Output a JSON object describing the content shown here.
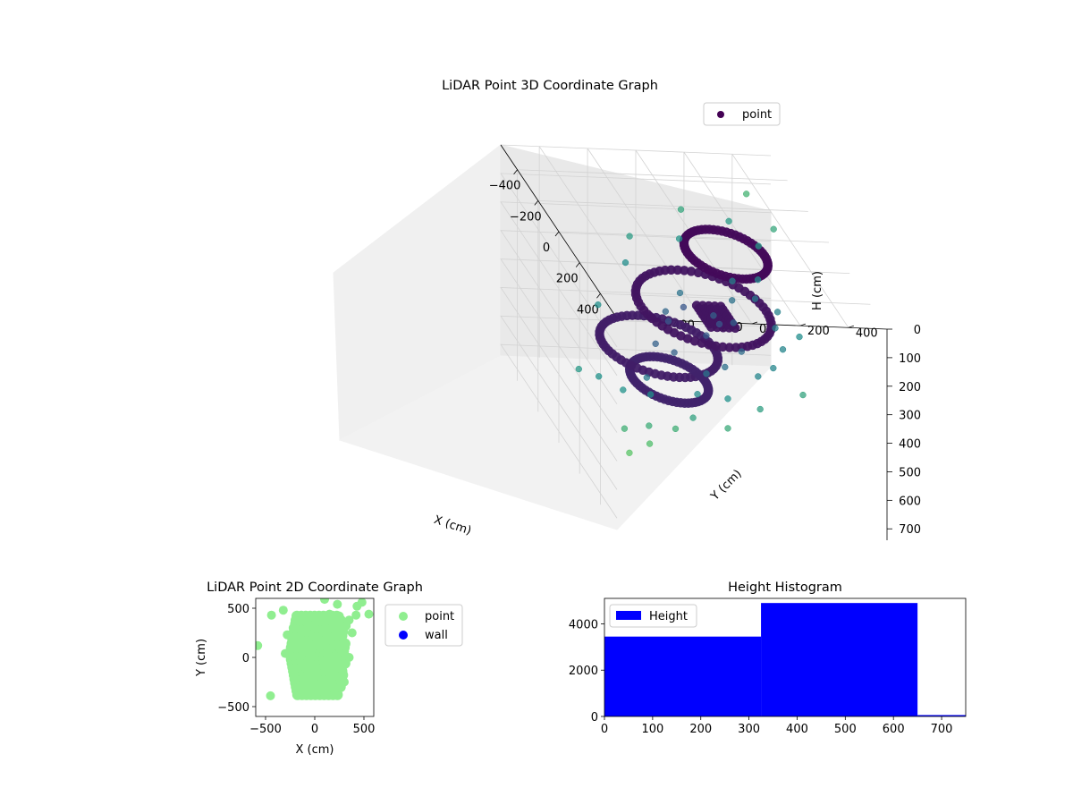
{
  "chart_data": [
    {
      "type": "scatter",
      "projection": "3d",
      "title": "LiDAR Point 3D Coordinate Graph",
      "xlabel": "X (cm)",
      "ylabel": "Y (cm)",
      "zlabel": "H (cm)",
      "x_ticks": [
        "−400",
        "−200",
        "0",
        "200",
        "400"
      ],
      "y_ticks": [
        "−400",
        "−200",
        "0",
        "200",
        "400"
      ],
      "z_ticks": [
        "0",
        "100",
        "200",
        "300",
        "400",
        "500",
        "600",
        "700"
      ],
      "xlim": [
        -560,
        560
      ],
      "ylim": [
        -560,
        560
      ],
      "zlim": [
        0,
        740
      ],
      "z_inverted": true,
      "grid": true,
      "colormap": "viridis",
      "legend": {
        "position": "top-right",
        "entries": [
          "point"
        ]
      },
      "series": [
        {
          "name": "point",
          "color": "#440154",
          "points": [
            [
              -470,
              420,
              90
            ],
            [
              -360,
              300,
              130
            ],
            [
              -520,
              170,
              180
            ],
            [
              -300,
              460,
              120
            ],
            [
              -260,
              380,
              160
            ],
            [
              -420,
              120,
              230
            ],
            [
              -480,
              -60,
              260
            ],
            [
              -380,
              -120,
              300
            ],
            [
              -210,
              250,
              260
            ],
            [
              -150,
              330,
              220
            ],
            [
              -120,
              210,
              280
            ],
            [
              -60,
              280,
              240
            ],
            [
              -250,
              50,
              330
            ],
            [
              -180,
              -40,
              360
            ],
            [
              -320,
              -260,
              420
            ],
            [
              -90,
              120,
              320
            ],
            [
              -20,
              -150,
              390
            ],
            [
              40,
              330,
              230
            ],
            [
              110,
              290,
              250
            ],
            [
              180,
              360,
              240
            ],
            [
              230,
              270,
              260
            ],
            [
              300,
              200,
              290
            ],
            [
              340,
              120,
              300
            ],
            [
              260,
              -60,
              340
            ],
            [
              360,
              -140,
              360
            ],
            [
              420,
              -40,
              340
            ],
            [
              480,
              -210,
              380
            ],
            [
              520,
              -300,
              400
            ],
            [
              450,
              -380,
              430
            ],
            [
              400,
              -460,
              470
            ],
            [
              550,
              -420,
              440
            ],
            [
              540,
              -500,
              480
            ],
            [
              280,
              -300,
              410
            ],
            [
              200,
              -380,
              440
            ],
            [
              150,
              -260,
              420
            ],
            [
              60,
              -420,
              470
            ],
            [
              -40,
              -460,
              500
            ],
            [
              500,
              60,
              330
            ],
            [
              560,
              -100,
              370
            ],
            [
              470,
              250,
              290
            ],
            [
              120,
              0,
              280
            ],
            [
              60,
              80,
              270
            ],
            [
              180,
              120,
              300
            ],
            [
              230,
              30,
              330
            ],
            [
              -100,
              0,
              300
            ],
            [
              -60,
              -80,
              330
            ],
            [
              10,
              160,
              290
            ],
            [
              90,
              -120,
              360
            ]
          ]
        }
      ]
    },
    {
      "type": "scatter",
      "title": "LiDAR Point 2D Coordinate Graph",
      "xlabel": "X (cm)",
      "ylabel": "Y (cm)",
      "x_ticks": [
        -500,
        0,
        500
      ],
      "y_ticks": [
        -500,
        0,
        500
      ],
      "xlim": [
        -600,
        600
      ],
      "ylim": [
        -600,
        600
      ],
      "legend": {
        "position": "outside-right",
        "entries": [
          "point",
          "wall"
        ]
      },
      "series": [
        {
          "name": "point",
          "color": "#90ee90",
          "points": [
            [
              -440,
              430
            ],
            [
              -320,
              480
            ],
            [
              -580,
              120
            ],
            [
              -450,
              -390
            ],
            [
              100,
              590
            ],
            [
              230,
              540
            ],
            [
              430,
              520
            ],
            [
              480,
              560
            ],
            [
              420,
              430
            ],
            [
              550,
              440
            ],
            [
              150,
              440
            ],
            [
              250,
              420
            ],
            [
              -200,
              380
            ],
            [
              350,
              380
            ],
            [
              -280,
              230
            ],
            [
              380,
              250
            ],
            [
              -300,
              40
            ],
            [
              350,
              0
            ],
            [
              -200,
              -220
            ],
            [
              300,
              -250
            ],
            [
              -100,
              -330
            ],
            [
              200,
              -330
            ],
            [
              0,
              -380
            ],
            [
              50,
              100
            ],
            [
              -100,
              150
            ],
            [
              150,
              200
            ],
            [
              -150,
              0
            ],
            [
              100,
              -100
            ],
            [
              0,
              300
            ],
            [
              -50,
              -150
            ],
            [
              250,
              100
            ],
            [
              200,
              -50
            ],
            [
              -220,
              300
            ],
            [
              320,
              320
            ],
            [
              80,
              -250
            ]
          ]
        },
        {
          "name": "wall",
          "color": "#0000ff",
          "points": []
        }
      ]
    },
    {
      "type": "bar",
      "title": "Height Histogram",
      "xlabel": "",
      "ylabel": "",
      "x_ticks": [
        0,
        100,
        200,
        300,
        400,
        500,
        600,
        700
      ],
      "y_ticks": [
        0,
        2000,
        4000
      ],
      "xlim": [
        0,
        750
      ],
      "ylim": [
        0,
        5100
      ],
      "legend": {
        "position": "top-left",
        "entries": [
          "Height"
        ]
      },
      "bins": [
        {
          "start": 0,
          "end": 325,
          "count": 3450
        },
        {
          "start": 325,
          "end": 650,
          "count": 4900
        },
        {
          "start": 650,
          "end": 750,
          "count": 60
        }
      ],
      "series": [
        {
          "name": "Height",
          "color": "#0000ff"
        }
      ]
    }
  ]
}
